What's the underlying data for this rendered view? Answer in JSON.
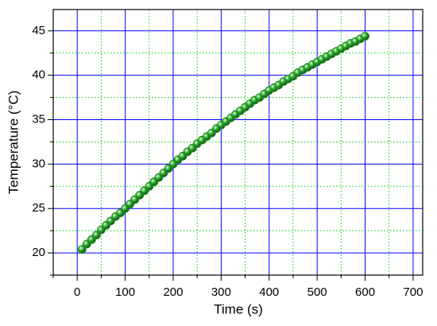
{
  "chart_data": {
    "type": "scatter",
    "x_label": "Time (s)",
    "y_label": "Temperature (°C)",
    "x": [
      10,
      20,
      30,
      40,
      50,
      60,
      70,
      80,
      90,
      100,
      110,
      120,
      130,
      140,
      150,
      160,
      170,
      180,
      190,
      200,
      210,
      220,
      230,
      240,
      250,
      260,
      270,
      280,
      290,
      300,
      310,
      320,
      330,
      340,
      350,
      360,
      370,
      380,
      390,
      400,
      410,
      420,
      430,
      440,
      450,
      460,
      470,
      480,
      490,
      500,
      510,
      520,
      530,
      540,
      550,
      560,
      570,
      580,
      590,
      600
    ],
    "series": [
      {
        "color": "#1a8a1a",
        "values": [
          20.4,
          21.0,
          21.5,
          22.0,
          22.6,
          23.1,
          23.6,
          24.1,
          24.5,
          25.0,
          25.5,
          26.0,
          26.5,
          27.0,
          27.5,
          28.0,
          28.5,
          29.0,
          29.5,
          30.0,
          30.5,
          30.9,
          31.4,
          31.8,
          32.3,
          32.7,
          33.1,
          33.5,
          34.0,
          34.4,
          34.8,
          35.2,
          35.6,
          36.0,
          36.4,
          36.8,
          37.2,
          37.5,
          37.9,
          38.3,
          38.6,
          38.9,
          39.3,
          39.6,
          39.9,
          40.3,
          40.6,
          40.9,
          41.2,
          41.5,
          41.8,
          42.1,
          42.4,
          42.7,
          43.0,
          43.3,
          43.6,
          43.8,
          44.1,
          44.4
        ]
      }
    ],
    "xlim": [
      -50,
      720
    ],
    "ylim": [
      17.5,
      47.4
    ],
    "xticks": [
      0,
      100,
      200,
      300,
      400,
      500,
      600,
      700
    ],
    "yticks": [
      20,
      25,
      30,
      35,
      40,
      45
    ],
    "grid": true,
    "grid_color": "#0000ff",
    "minor_grid": true,
    "minor_grid_color": "#00cc00"
  }
}
